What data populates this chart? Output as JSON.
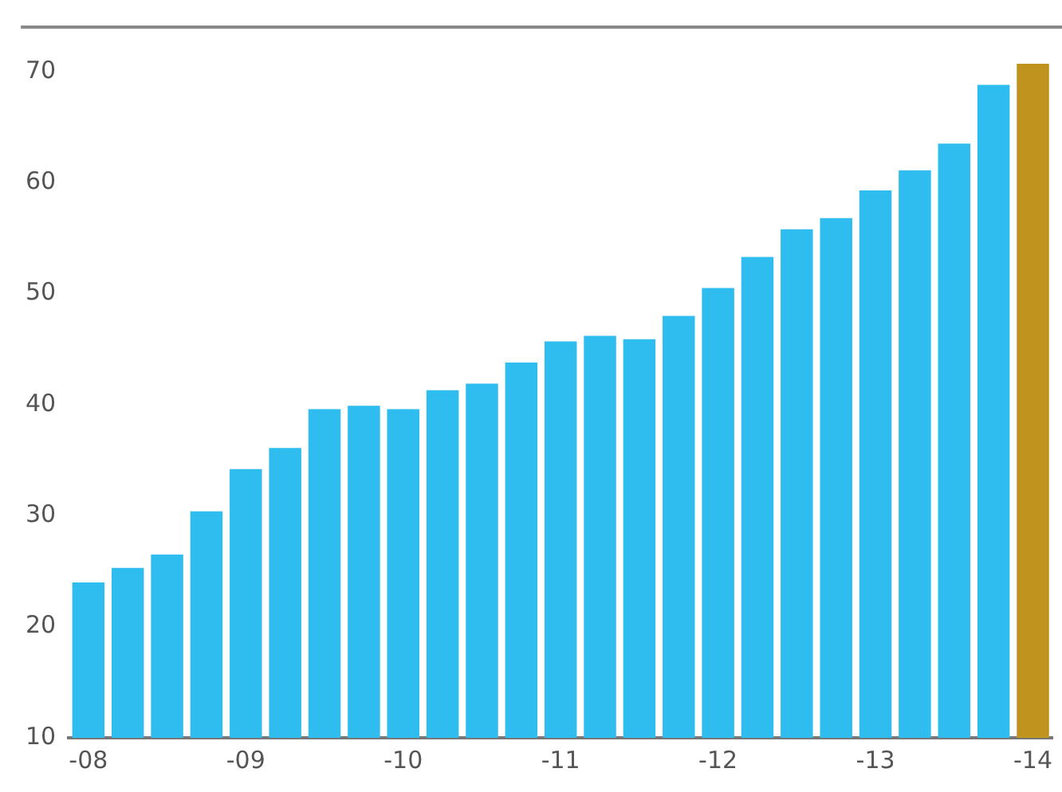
{
  "chart_data": {
    "type": "bar",
    "categories": [
      "-08",
      null,
      null,
      null,
      "-09",
      null,
      null,
      null,
      "-10",
      null,
      null,
      null,
      "-11",
      null,
      null,
      null,
      "-12",
      null,
      null,
      null,
      "-13",
      null,
      null,
      null,
      "-14"
    ],
    "values": [
      24.0,
      25.3,
      26.5,
      30.4,
      34.2,
      36.1,
      39.6,
      39.9,
      39.6,
      41.3,
      41.9,
      43.8,
      45.7,
      46.2,
      45.9,
      48.0,
      50.5,
      53.3,
      55.8,
      56.8,
      59.3,
      61.1,
      63.5,
      68.8,
      70.7
    ],
    "colors": [
      "#2ebdee",
      "#2ebdee",
      "#2ebdee",
      "#2ebdee",
      "#2ebdee",
      "#2ebdee",
      "#2ebdee",
      "#2ebdee",
      "#2ebdee",
      "#2ebdee",
      "#2ebdee",
      "#2ebdee",
      "#2ebdee",
      "#2ebdee",
      "#2ebdee",
      "#2ebdee",
      "#2ebdee",
      "#2ebdee",
      "#2ebdee",
      "#2ebdee",
      "#2ebdee",
      "#2ebdee",
      "#2ebdee",
      "#2ebdee",
      "#c0931f"
    ],
    "ylim": [
      10,
      74
    ],
    "yticks": [
      10,
      20,
      30,
      40,
      50,
      60,
      70
    ],
    "grid": false,
    "legend": false
  }
}
